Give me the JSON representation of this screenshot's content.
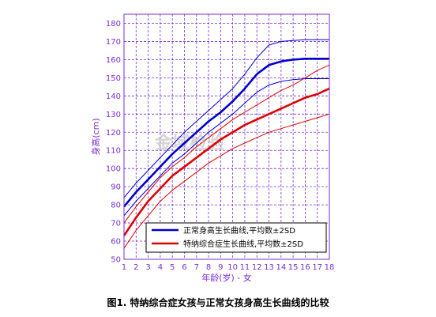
{
  "chart_data": {
    "type": "line",
    "xlabel": "年龄(岁) - 女",
    "ylabel": "身高(cm)",
    "xlim": [
      1,
      18
    ],
    "ylim": [
      50,
      185
    ],
    "x_ticks": [
      1,
      2,
      3,
      4,
      5,
      6,
      7,
      8,
      9,
      10,
      11,
      12,
      13,
      14,
      15,
      16,
      17,
      18
    ],
    "y_ticks": [
      50,
      60,
      70,
      80,
      90,
      100,
      110,
      120,
      130,
      140,
      150,
      160,
      170,
      180
    ],
    "grid": true,
    "legend_placement": "bottom-right",
    "legend": [
      {
        "label": "正常身高生长曲线,平均数±2SD",
        "color": "#0000d0"
      },
      {
        "label": "特纳综合症生长曲线,平均数±2SD",
        "color": "#e00000"
      }
    ],
    "series": [
      {
        "group": "normal",
        "role": "+2SD",
        "color": "#0000d0",
        "x": [
          1,
          2,
          3,
          4,
          5,
          6,
          7,
          8,
          9,
          10,
          11,
          12,
          13,
          14,
          15,
          16,
          17,
          18
        ],
        "y": [
          84,
          92,
          99,
          106,
          113,
          120,
          126,
          132,
          138,
          144,
          152,
          161,
          168,
          170,
          170.5,
          171,
          171,
          171
        ]
      },
      {
        "group": "normal",
        "role": "mean",
        "color": "#0000d0",
        "x": [
          1,
          2,
          3,
          4,
          5,
          6,
          7,
          8,
          9,
          10,
          11,
          12,
          13,
          14,
          15,
          16,
          17,
          18
        ],
        "y": [
          79,
          87,
          94,
          101,
          108,
          114,
          120,
          126,
          131,
          137,
          144,
          152,
          157,
          159,
          160,
          160.5,
          160.5,
          160.5
        ]
      },
      {
        "group": "normal",
        "role": "-2SD",
        "color": "#0000d0",
        "x": [
          1,
          2,
          3,
          4,
          5,
          6,
          7,
          8,
          9,
          10,
          11,
          12,
          13,
          14,
          15,
          16,
          17,
          18
        ],
        "y": [
          74,
          82,
          89,
          96,
          103,
          108,
          114,
          120,
          125,
          130,
          136,
          142,
          146,
          148,
          149,
          149.5,
          149.5,
          149.5
        ]
      },
      {
        "group": "turner",
        "role": "+2SD",
        "color": "#e00000",
        "x": [
          1,
          2,
          3,
          4,
          5,
          6,
          7,
          8,
          9,
          10,
          11,
          12,
          13,
          14,
          15,
          16,
          17,
          18
        ],
        "y": [
          70,
          79,
          87,
          95,
          101,
          106,
          112,
          117,
          122,
          127,
          131,
          135,
          139,
          143,
          146,
          150,
          154,
          157
        ]
      },
      {
        "group": "turner",
        "role": "mean",
        "color": "#e00000",
        "x": [
          1,
          2,
          3,
          4,
          5,
          6,
          7,
          8,
          9,
          10,
          11,
          12,
          13,
          14,
          15,
          16,
          17,
          18
        ],
        "y": [
          63,
          73,
          82,
          89,
          96,
          101,
          106,
          111,
          116,
          120,
          124,
          127,
          130,
          133,
          136,
          139,
          141,
          144
        ]
      },
      {
        "group": "turner",
        "role": "-2SD",
        "color": "#e00000",
        "x": [
          1,
          2,
          3,
          4,
          5,
          6,
          7,
          8,
          9,
          10,
          11,
          12,
          13,
          14,
          15,
          16,
          17,
          18
        ],
        "y": [
          56,
          66,
          74,
          82,
          88,
          93,
          98,
          103,
          107,
          111,
          114,
          117,
          120,
          122,
          124,
          126,
          128,
          130
        ]
      }
    ]
  },
  "watermark": "金域检验",
  "caption": "图1. 特纳综合症女孩与正常女孩身高生长曲线的比较"
}
